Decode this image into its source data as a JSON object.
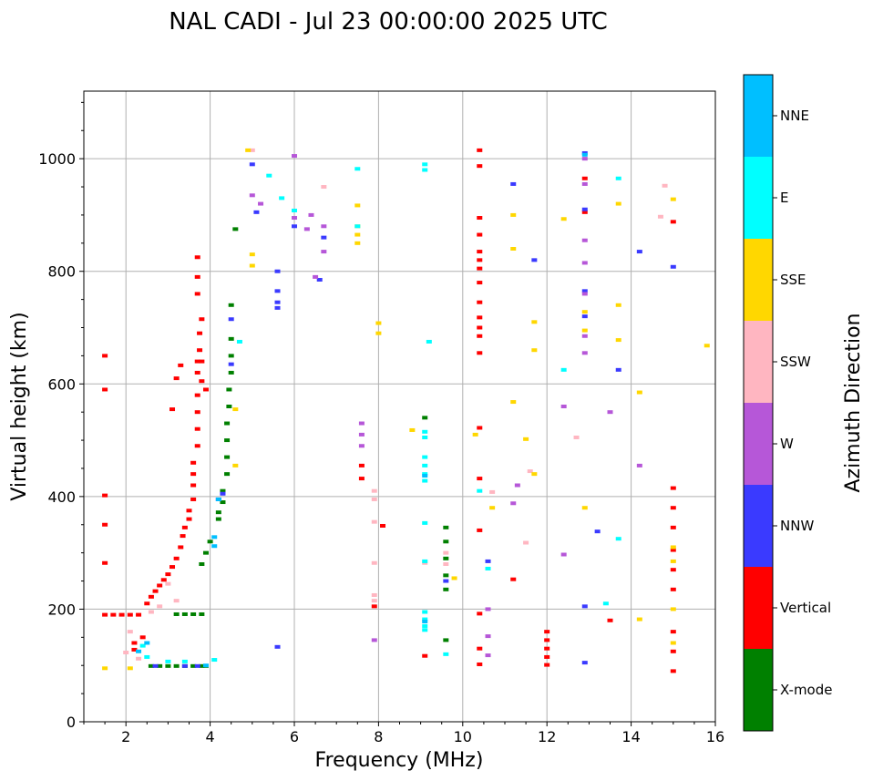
{
  "chart_data": {
    "type": "scatter",
    "title": "NAL CADI - Jul 23 00:00:00 2025 UTC",
    "xlabel": "Frequency (MHz)",
    "ylabel": "Virtual height (km)",
    "xlim": [
      1,
      16
    ],
    "ylim": [
      0,
      1120
    ],
    "xticks": [
      2,
      4,
      6,
      8,
      10,
      12,
      14,
      16
    ],
    "yticks": [
      0,
      200,
      400,
      600,
      800,
      1000
    ],
    "grid": true,
    "colorbar": {
      "label": "Azimuth Direction",
      "categories": [
        {
          "name": "X-mode",
          "color": "#008000"
        },
        {
          "name": "Vertical",
          "color": "#ff0000"
        },
        {
          "name": "NNW",
          "color": "#3a3aff"
        },
        {
          "name": "W",
          "color": "#b657d8"
        },
        {
          "name": "SSW",
          "color": "#ffb6c1"
        },
        {
          "name": "SSE",
          "color": "#ffd700"
        },
        {
          "name": "E",
          "color": "#00ffff"
        },
        {
          "name": "NNE",
          "color": "#00bfff"
        }
      ]
    },
    "series": [
      {
        "name": "X-mode",
        "points": [
          [
            2.6,
            99
          ],
          [
            2.8,
            99
          ],
          [
            3.0,
            99
          ],
          [
            3.2,
            99
          ],
          [
            3.4,
            99
          ],
          [
            3.6,
            99
          ],
          [
            3.8,
            99
          ],
          [
            3.9,
            99
          ],
          [
            3.2,
            191
          ],
          [
            3.4,
            191
          ],
          [
            3.6,
            191
          ],
          [
            3.8,
            191
          ],
          [
            3.8,
            280
          ],
          [
            3.9,
            300
          ],
          [
            4.0,
            320
          ],
          [
            4.2,
            360
          ],
          [
            4.2,
            372
          ],
          [
            4.3,
            390
          ],
          [
            4.3,
            410
          ],
          [
            4.4,
            440
          ],
          [
            4.4,
            470
          ],
          [
            4.4,
            500
          ],
          [
            4.4,
            530
          ],
          [
            4.45,
            560
          ],
          [
            4.45,
            590
          ],
          [
            4.5,
            620
          ],
          [
            4.5,
            650
          ],
          [
            4.5,
            680
          ],
          [
            4.5,
            740
          ],
          [
            4.6,
            875
          ],
          [
            9.1,
            540
          ],
          [
            9.6,
            345
          ],
          [
            9.6,
            320
          ],
          [
            9.6,
            290
          ],
          [
            9.6,
            260
          ],
          [
            9.6,
            235
          ],
          [
            9.6,
            145
          ]
        ]
      },
      {
        "name": "Vertical",
        "points": [
          [
            1.5,
            650
          ],
          [
            1.5,
            590
          ],
          [
            1.5,
            402
          ],
          [
            1.5,
            350
          ],
          [
            1.5,
            282
          ],
          [
            1.5,
            190
          ],
          [
            1.7,
            190
          ],
          [
            1.9,
            190
          ],
          [
            2.1,
            190
          ],
          [
            2.3,
            190
          ],
          [
            2.2,
            140
          ],
          [
            2.2,
            128
          ],
          [
            2.4,
            150
          ],
          [
            2.5,
            210
          ],
          [
            2.6,
            222
          ],
          [
            2.7,
            232
          ],
          [
            2.8,
            242
          ],
          [
            2.9,
            252
          ],
          [
            3.0,
            262
          ],
          [
            3.1,
            275
          ],
          [
            3.2,
            290
          ],
          [
            3.3,
            310
          ],
          [
            3.35,
            330
          ],
          [
            3.4,
            345
          ],
          [
            3.5,
            360
          ],
          [
            3.5,
            375
          ],
          [
            3.6,
            395
          ],
          [
            3.6,
            420
          ],
          [
            3.6,
            440
          ],
          [
            3.6,
            460
          ],
          [
            3.7,
            490
          ],
          [
            3.7,
            520
          ],
          [
            3.7,
            550
          ],
          [
            3.7,
            580
          ],
          [
            3.7,
            620
          ],
          [
            3.7,
            640
          ],
          [
            3.75,
            660
          ],
          [
            3.75,
            690
          ],
          [
            3.8,
            715
          ],
          [
            3.7,
            760
          ],
          [
            3.7,
            790
          ],
          [
            3.7,
            825
          ],
          [
            3.3,
            633
          ],
          [
            3.2,
            610
          ],
          [
            3.1,
            555
          ],
          [
            3.8,
            640
          ],
          [
            3.8,
            605
          ],
          [
            3.9,
            590
          ],
          [
            7.6,
            455
          ],
          [
            7.6,
            432
          ],
          [
            8.1,
            348
          ],
          [
            7.9,
            205
          ],
          [
            10.4,
            1015
          ],
          [
            10.4,
            987
          ],
          [
            10.4,
            895
          ],
          [
            10.4,
            865
          ],
          [
            10.4,
            835
          ],
          [
            10.4,
            820
          ],
          [
            10.4,
            805
          ],
          [
            10.4,
            780
          ],
          [
            10.4,
            745
          ],
          [
            10.4,
            718
          ],
          [
            10.4,
            700
          ],
          [
            10.4,
            685
          ],
          [
            10.4,
            655
          ],
          [
            10.4,
            522
          ],
          [
            10.4,
            432
          ],
          [
            10.4,
            340
          ],
          [
            10.4,
            192
          ],
          [
            10.4,
            130
          ],
          [
            10.4,
            102
          ],
          [
            9.1,
            117
          ],
          [
            11.2,
            253
          ],
          [
            12.0,
            160
          ],
          [
            12.0,
            145
          ],
          [
            12.0,
            130
          ],
          [
            12.0,
            115
          ],
          [
            12.0,
            101
          ],
          [
            12.9,
            965
          ],
          [
            12.9,
            905
          ],
          [
            13.5,
            180
          ],
          [
            15.0,
            888
          ],
          [
            15.0,
            415
          ],
          [
            15.0,
            380
          ],
          [
            15.0,
            345
          ],
          [
            15.0,
            305
          ],
          [
            15.0,
            270
          ],
          [
            15.0,
            235
          ],
          [
            15.0,
            160
          ],
          [
            15.0,
            125
          ],
          [
            15.0,
            90
          ]
        ]
      },
      {
        "name": "NNW",
        "points": [
          [
            3.4,
            99
          ],
          [
            3.7,
            99
          ],
          [
            2.7,
            99
          ],
          [
            4.2,
            395
          ],
          [
            4.3,
            405
          ],
          [
            4.5,
            635
          ],
          [
            4.5,
            715
          ],
          [
            5.0,
            990
          ],
          [
            5.1,
            905
          ],
          [
            5.6,
            800
          ],
          [
            5.6,
            765
          ],
          [
            5.6,
            745
          ],
          [
            5.6,
            735
          ],
          [
            5.6,
            133
          ],
          [
            6.0,
            880
          ],
          [
            6.6,
            785
          ],
          [
            6.7,
            860
          ],
          [
            9.6,
            250
          ],
          [
            10.6,
            285
          ],
          [
            11.7,
            820
          ],
          [
            11.2,
            955
          ],
          [
            12.9,
            1010
          ],
          [
            12.9,
            910
          ],
          [
            12.9,
            765
          ],
          [
            12.9,
            720
          ],
          [
            12.9,
            205
          ],
          [
            12.9,
            105
          ],
          [
            13.7,
            625
          ],
          [
            14.2,
            835
          ],
          [
            13.2,
            338
          ],
          [
            15.0,
            808
          ]
        ]
      },
      {
        "name": "W",
        "points": [
          [
            5.0,
            935
          ],
          [
            5.2,
            920
          ],
          [
            6.0,
            1005
          ],
          [
            6.0,
            895
          ],
          [
            6.4,
            900
          ],
          [
            6.5,
            790
          ],
          [
            6.7,
            880
          ],
          [
            6.3,
            875
          ],
          [
            6.7,
            835
          ],
          [
            7.6,
            530
          ],
          [
            7.6,
            510
          ],
          [
            7.6,
            490
          ],
          [
            7.9,
            145
          ],
          [
            10.6,
            200
          ],
          [
            10.6,
            152
          ],
          [
            10.6,
            118
          ],
          [
            11.2,
            388
          ],
          [
            11.3,
            420
          ],
          [
            12.4,
            560
          ],
          [
            12.4,
            297
          ],
          [
            12.9,
            955
          ],
          [
            12.9,
            855
          ],
          [
            12.9,
            815
          ],
          [
            12.9,
            760
          ],
          [
            12.9,
            685
          ],
          [
            12.9,
            655
          ],
          [
            13.5,
            550
          ],
          [
            14.2,
            455
          ],
          [
            12.9,
            1000
          ]
        ]
      },
      {
        "name": "SSW",
        "points": [
          [
            2.0,
            123
          ],
          [
            2.1,
            160
          ],
          [
            2.3,
            112
          ],
          [
            2.6,
            195
          ],
          [
            2.8,
            205
          ],
          [
            3.2,
            215
          ],
          [
            3.0,
            245
          ],
          [
            7.9,
            410
          ],
          [
            7.9,
            395
          ],
          [
            7.9,
            355
          ],
          [
            7.9,
            282
          ],
          [
            7.9,
            225
          ],
          [
            7.9,
            215
          ],
          [
            9.1,
            282
          ],
          [
            9.6,
            300
          ],
          [
            9.6,
            280
          ],
          [
            10.7,
            408
          ],
          [
            11.5,
            318
          ],
          [
            11.6,
            445
          ],
          [
            12.7,
            505
          ],
          [
            14.7,
            897
          ],
          [
            14.8,
            952
          ],
          [
            6.7,
            950
          ],
          [
            5.0,
            1015
          ]
        ]
      },
      {
        "name": "SSE",
        "points": [
          [
            1.5,
            95
          ],
          [
            2.1,
            95
          ],
          [
            4.6,
            555
          ],
          [
            4.6,
            455
          ],
          [
            4.9,
            1015
          ],
          [
            5.0,
            830
          ],
          [
            5.0,
            810
          ],
          [
            7.5,
            917
          ],
          [
            7.5,
            880
          ],
          [
            7.5,
            865
          ],
          [
            7.5,
            850
          ],
          [
            8.0,
            708
          ],
          [
            8.0,
            690
          ],
          [
            8.8,
            518
          ],
          [
            9.8,
            255
          ],
          [
            10.3,
            510
          ],
          [
            10.7,
            380
          ],
          [
            11.2,
            900
          ],
          [
            11.2,
            840
          ],
          [
            11.2,
            568
          ],
          [
            11.5,
            502
          ],
          [
            11.7,
            710
          ],
          [
            11.7,
            660
          ],
          [
            11.7,
            440
          ],
          [
            12.4,
            893
          ],
          [
            12.9,
            728
          ],
          [
            12.9,
            695
          ],
          [
            12.9,
            380
          ],
          [
            13.7,
            920
          ],
          [
            13.7,
            740
          ],
          [
            13.7,
            678
          ],
          [
            14.2,
            182
          ],
          [
            14.2,
            585
          ],
          [
            15.0,
            928
          ],
          [
            15.0,
            310
          ],
          [
            15.0,
            285
          ],
          [
            15.0,
            200
          ],
          [
            15.0,
            140
          ],
          [
            15.8,
            668
          ]
        ]
      },
      {
        "name": "E",
        "points": [
          [
            2.4,
            135
          ],
          [
            2.5,
            115
          ],
          [
            3.0,
            107
          ],
          [
            3.4,
            107
          ],
          [
            4.1,
            110
          ],
          [
            4.7,
            675
          ],
          [
            5.4,
            970
          ],
          [
            5.7,
            930
          ],
          [
            6.0,
            908
          ],
          [
            7.5,
            880
          ],
          [
            7.5,
            982
          ],
          [
            9.1,
            990
          ],
          [
            9.1,
            980
          ],
          [
            9.1,
            515
          ],
          [
            9.1,
            505
          ],
          [
            9.1,
            470
          ],
          [
            9.1,
            455
          ],
          [
            9.1,
            440
          ],
          [
            9.1,
            428
          ],
          [
            9.1,
            353
          ],
          [
            9.1,
            285
          ],
          [
            9.1,
            195
          ],
          [
            9.1,
            182
          ],
          [
            9.1,
            170
          ],
          [
            9.1,
            163
          ],
          [
            9.2,
            675
          ],
          [
            9.6,
            120
          ],
          [
            10.4,
            410
          ],
          [
            10.6,
            272
          ],
          [
            12.4,
            625
          ],
          [
            13.4,
            210
          ],
          [
            13.7,
            325
          ],
          [
            13.7,
            965
          ]
        ]
      },
      {
        "name": "NNE",
        "points": [
          [
            2.3,
            125
          ],
          [
            2.5,
            140
          ],
          [
            3.9,
            100
          ],
          [
            4.1,
            312
          ],
          [
            4.1,
            328
          ],
          [
            4.2,
            395
          ],
          [
            9.1,
            437
          ],
          [
            9.1,
            178
          ],
          [
            12.9,
            1007
          ]
        ]
      }
    ]
  }
}
